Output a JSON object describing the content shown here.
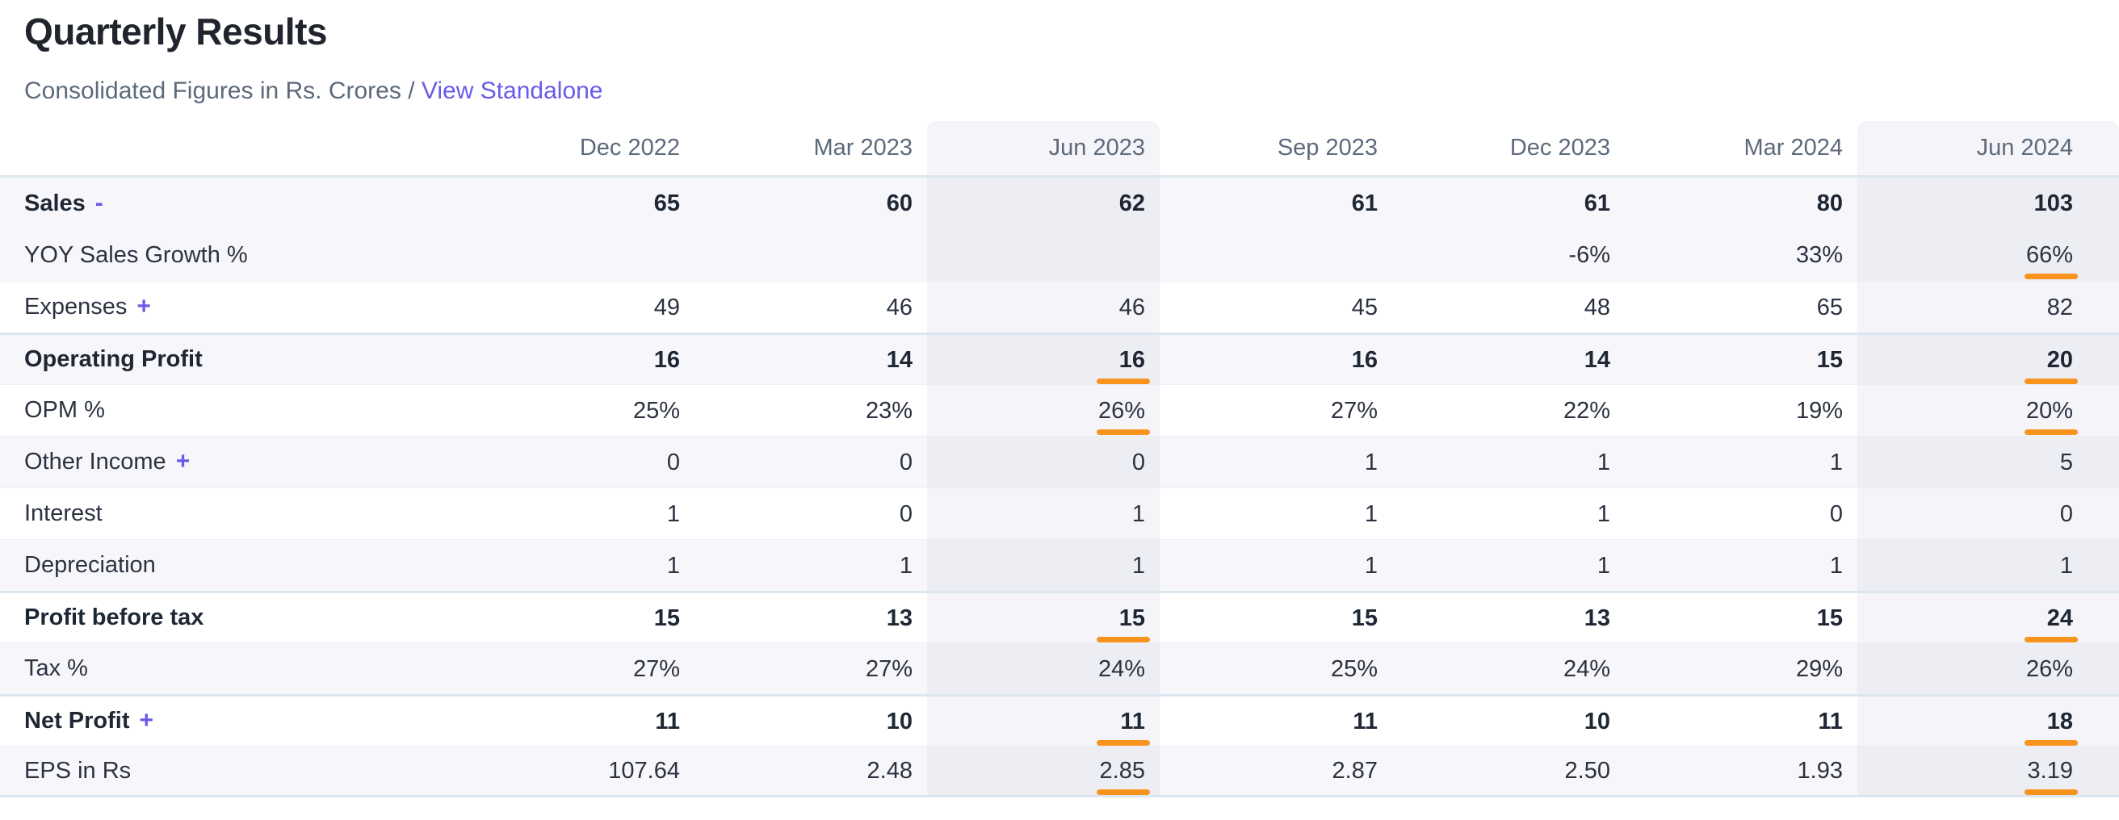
{
  "header": {
    "title": "Quarterly Results",
    "subtitle_prefix": "Consolidated Figures in Rs. Crores /",
    "link_label": "View Standalone"
  },
  "colors": {
    "accent_purple": "#685be8",
    "flag_orange": "#f8941d",
    "stripe_row": "#f7f7fb",
    "highlight_column": "#f4f4f9",
    "strong_border": "#dce6ef"
  },
  "table": {
    "columns": [
      "Dec 2022",
      "Mar 2023",
      "Jun 2023",
      "Sep 2023",
      "Dec 2023",
      "Mar 2024",
      "Jun 2024"
    ],
    "highlight_columns": [
      2,
      6
    ],
    "rows": [
      {
        "label": "Sales",
        "toggle": "-",
        "bold": true,
        "stripe": true,
        "no_border_above": true,
        "values": [
          "65",
          "60",
          "62",
          "61",
          "61",
          "80",
          "103"
        ],
        "underline": []
      },
      {
        "label": "YOY Sales Growth %",
        "stripe": true,
        "no_border_above": true,
        "values": [
          "",
          "",
          "",
          "",
          "-6%",
          "33%",
          "66%"
        ],
        "underline": [
          6
        ]
      },
      {
        "label": "Expenses",
        "toggle": "+",
        "values": [
          "49",
          "46",
          "46",
          "45",
          "48",
          "65",
          "82"
        ],
        "underline": []
      },
      {
        "label": "Operating Profit",
        "bold": true,
        "stripe": true,
        "strong_border_above": true,
        "values": [
          "16",
          "14",
          "16",
          "16",
          "14",
          "15",
          "20"
        ],
        "underline": [
          2,
          6
        ]
      },
      {
        "label": "OPM %",
        "values": [
          "25%",
          "23%",
          "26%",
          "27%",
          "22%",
          "19%",
          "20%"
        ],
        "underline": [
          2,
          6
        ]
      },
      {
        "label": "Other Income",
        "toggle": "+",
        "stripe": true,
        "values": [
          "0",
          "0",
          "0",
          "1",
          "1",
          "1",
          "5"
        ],
        "underline": []
      },
      {
        "label": "Interest",
        "values": [
          "1",
          "0",
          "1",
          "1",
          "1",
          "0",
          "0"
        ],
        "underline": []
      },
      {
        "label": "Depreciation",
        "stripe": true,
        "values": [
          "1",
          "1",
          "1",
          "1",
          "1",
          "1",
          "1"
        ],
        "underline": []
      },
      {
        "label": "Profit before tax",
        "bold": true,
        "strong_border_above": true,
        "values": [
          "15",
          "13",
          "15",
          "15",
          "13",
          "15",
          "24"
        ],
        "underline": [
          2,
          6
        ]
      },
      {
        "label": "Tax %",
        "stripe": true,
        "values": [
          "27%",
          "27%",
          "24%",
          "25%",
          "24%",
          "29%",
          "26%"
        ],
        "underline": []
      },
      {
        "label": "Net Profit",
        "toggle": "+",
        "bold": true,
        "strong_border_above": true,
        "values": [
          "11",
          "10",
          "11",
          "11",
          "10",
          "11",
          "18"
        ],
        "underline": [
          2,
          6
        ]
      },
      {
        "label": "EPS in Rs",
        "stripe": true,
        "values": [
          "107.64",
          "2.48",
          "2.85",
          "2.87",
          "2.50",
          "1.93",
          "3.19"
        ],
        "underline": [
          2,
          6
        ]
      }
    ]
  }
}
